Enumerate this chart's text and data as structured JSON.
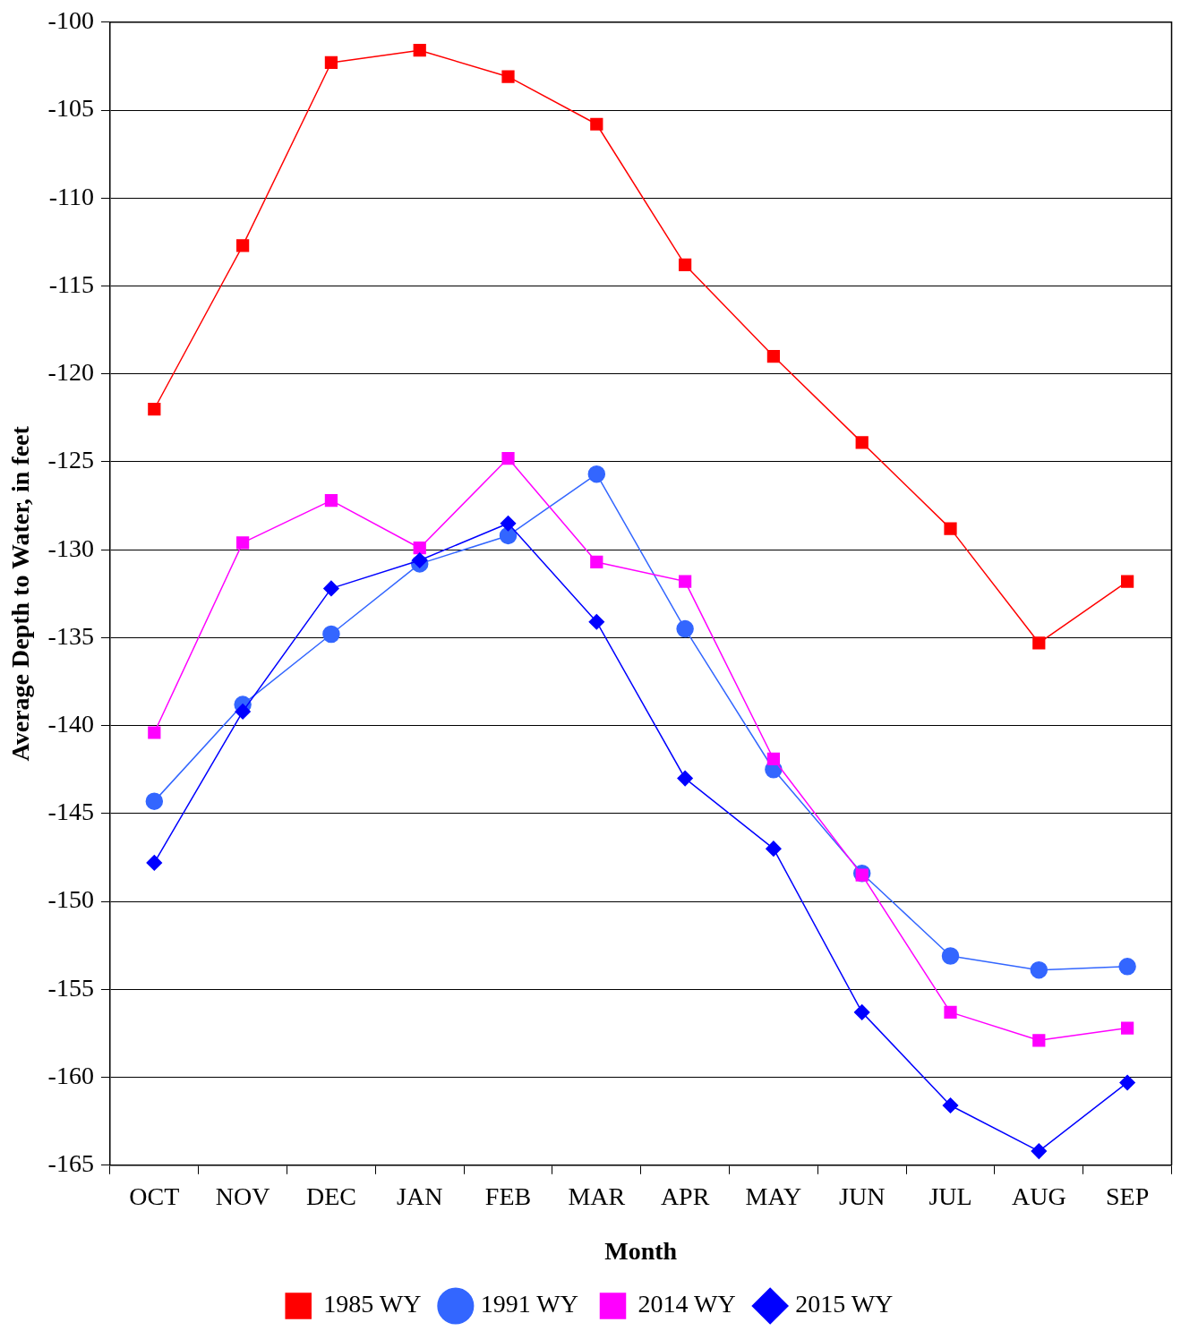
{
  "chart_data": {
    "type": "line",
    "xlabel": "Month",
    "ylabel": "Average Depth to Water, in feet",
    "categories": [
      "OCT",
      "NOV",
      "DEC",
      "JAN",
      "FEB",
      "MAR",
      "APR",
      "MAY",
      "JUN",
      "JUL",
      "AUG",
      "SEP"
    ],
    "ylim": [
      -165,
      -100
    ],
    "yticks": [
      -165,
      -160,
      -155,
      -150,
      -145,
      -140,
      -135,
      -130,
      -125,
      -120,
      -115,
      -110,
      -105,
      -100
    ],
    "grid": "y",
    "legend": "bottom",
    "line_style": "solid",
    "series": [
      {
        "name": "1985 WY",
        "color": "#ff0000",
        "marker": "square",
        "values": [
          -122.0,
          -112.7,
          -102.3,
          -101.6,
          -103.1,
          -105.8,
          -113.8,
          -119.0,
          -123.9,
          -128.8,
          -135.3,
          -131.8
        ]
      },
      {
        "name": "1991 WY",
        "color": "#3366ff",
        "marker": "circle",
        "values": [
          -144.3,
          -138.8,
          -134.8,
          -130.8,
          -129.2,
          -125.7,
          -134.5,
          -142.5,
          -148.4,
          -153.1,
          -153.9,
          -153.7
        ]
      },
      {
        "name": "2014 WY",
        "color": "#ff00ff",
        "marker": "square",
        "values": [
          -140.4,
          -129.6,
          -127.2,
          -129.9,
          -124.8,
          -130.7,
          -131.8,
          -141.9,
          -148.5,
          -156.3,
          -157.9,
          -157.2
        ]
      },
      {
        "name": "2015 WY",
        "color": "#0000ff",
        "marker": "diamond",
        "values": [
          -147.8,
          -139.2,
          -132.2,
          -130.6,
          -128.5,
          -134.1,
          -143.0,
          -147.0,
          -156.3,
          -161.6,
          -164.2,
          -160.3
        ]
      }
    ]
  }
}
